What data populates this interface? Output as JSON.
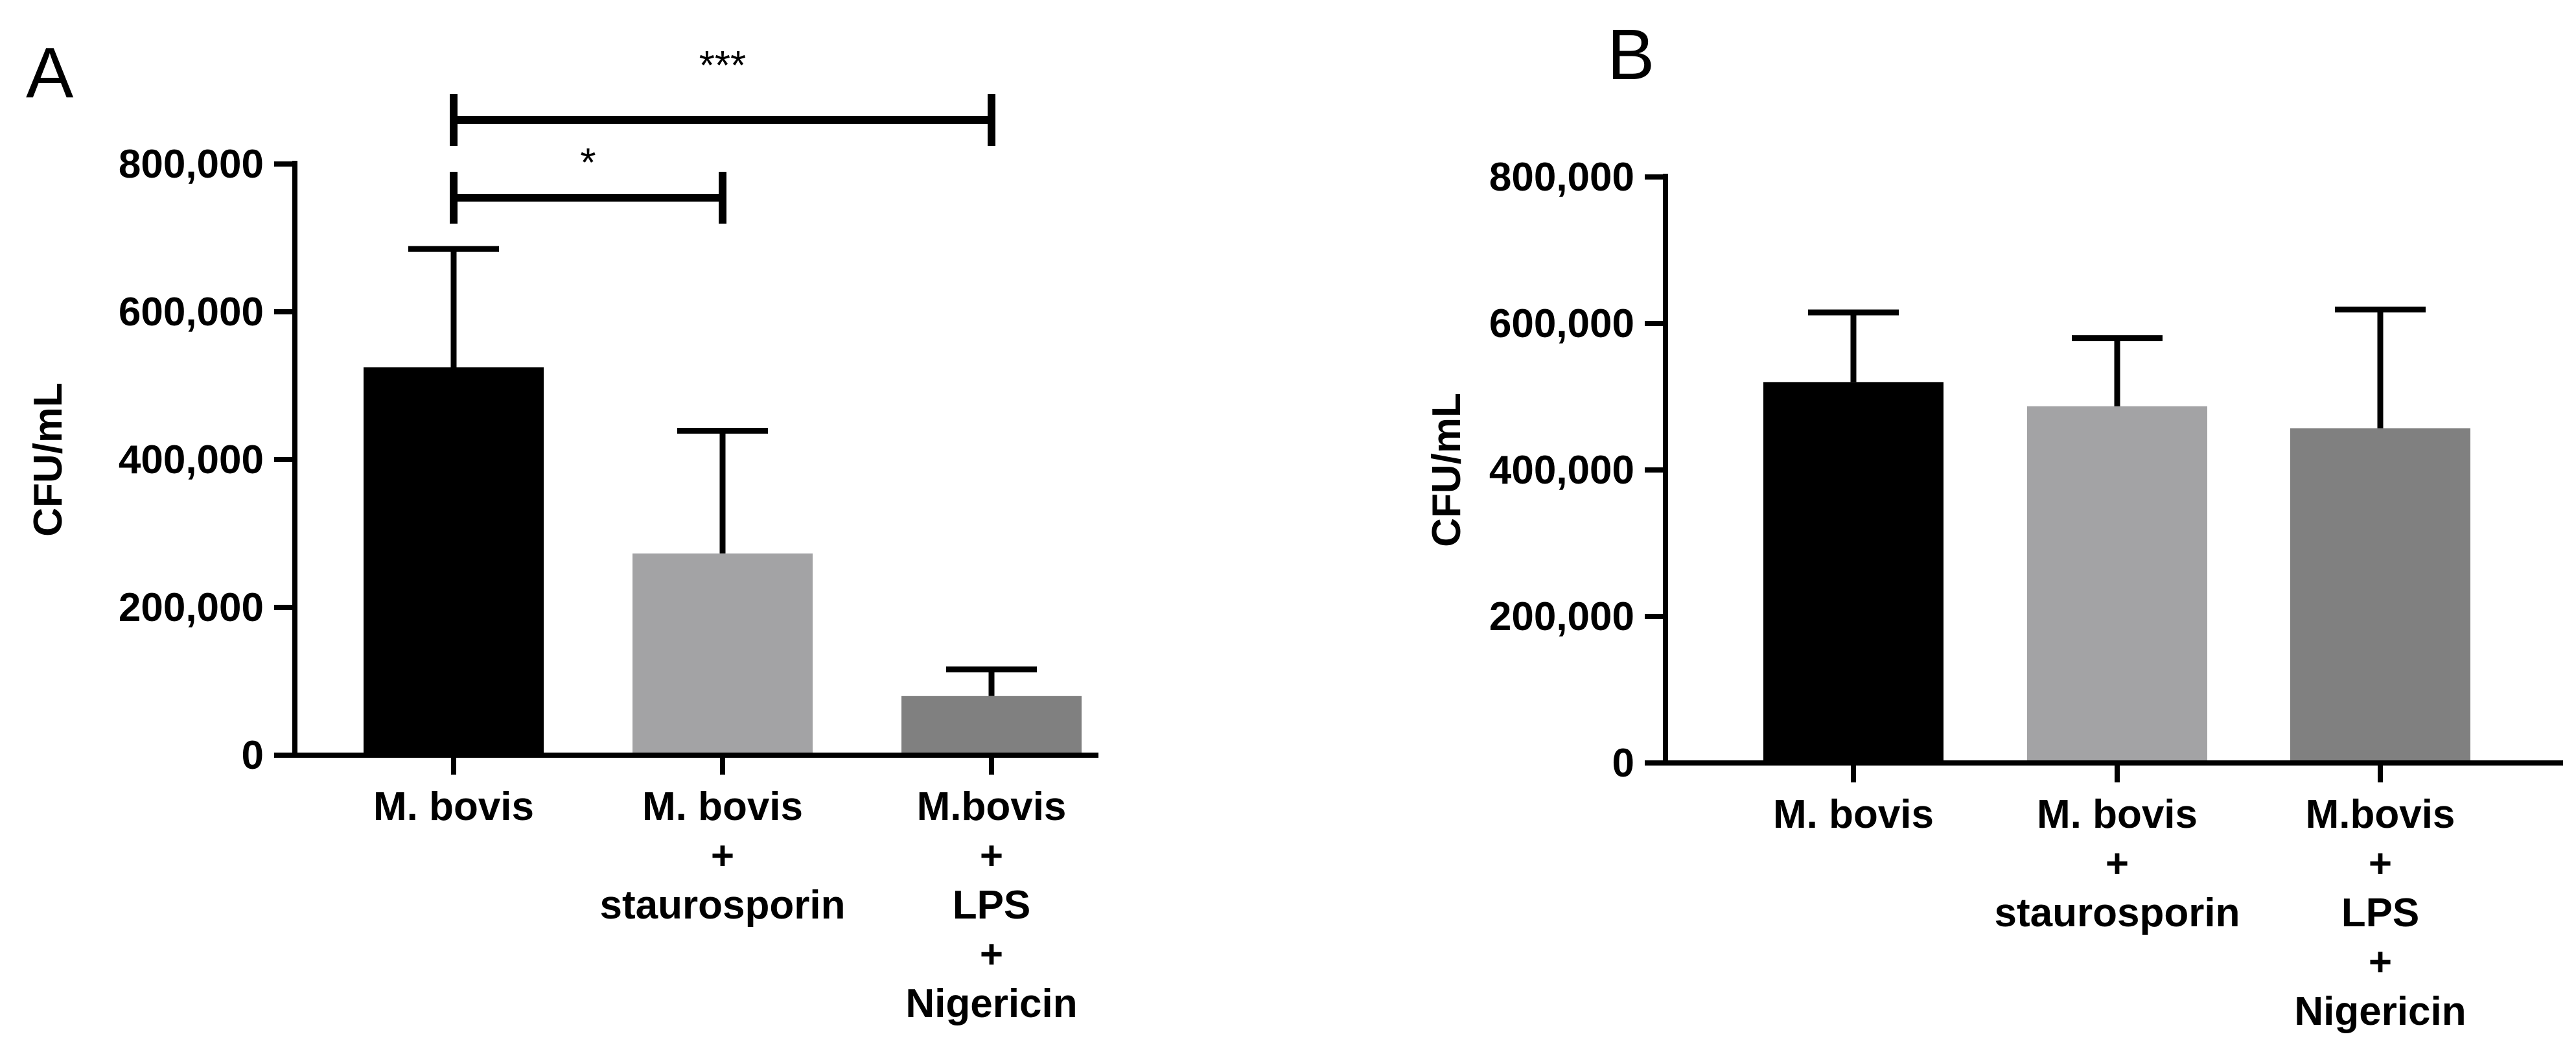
{
  "chart_data": [
    {
      "type": "bar",
      "panel": "A",
      "categories": [
        [
          "M. bovis"
        ],
        [
          "M. bovis",
          "+",
          "staurosporin"
        ],
        [
          "M.bovis",
          "+",
          "LPS",
          "+",
          "Nigericin"
        ]
      ],
      "values": [
        525000,
        273000,
        80000
      ],
      "errors": [
        160000,
        166000,
        36000
      ],
      "colors": [
        "#000000",
        "#a3a3a5",
        "#808080"
      ],
      "ylabel": "CFU/mL",
      "ylim": [
        0,
        800000
      ],
      "yticks": [
        0,
        200000,
        400000,
        600000,
        800000
      ],
      "ytick_labels": [
        "0",
        "200,000",
        "400,000",
        "600,000",
        "800,000"
      ],
      "significance": [
        {
          "from": 0,
          "to": 1,
          "label": "*"
        },
        {
          "from": 0,
          "to": 2,
          "label": "***"
        }
      ]
    },
    {
      "type": "bar",
      "panel": "B",
      "categories": [
        [
          "M. bovis"
        ],
        [
          "M. bovis",
          "+",
          "staurosporin"
        ],
        [
          "M.bovis",
          "+",
          "LPS",
          "+",
          "Nigericin"
        ]
      ],
      "values": [
        520000,
        487000,
        457000
      ],
      "errors": [
        95000,
        93000,
        162000
      ],
      "colors": [
        "#000000",
        "#a3a3a5",
        "#808080"
      ],
      "ylabel": "CFU/mL",
      "ylim": [
        0,
        800000
      ],
      "yticks": [
        0,
        200000,
        400000,
        600000,
        800000
      ],
      "ytick_labels": [
        "0",
        "200,000",
        "400,000",
        "600,000",
        "800,000"
      ],
      "significance": []
    }
  ]
}
